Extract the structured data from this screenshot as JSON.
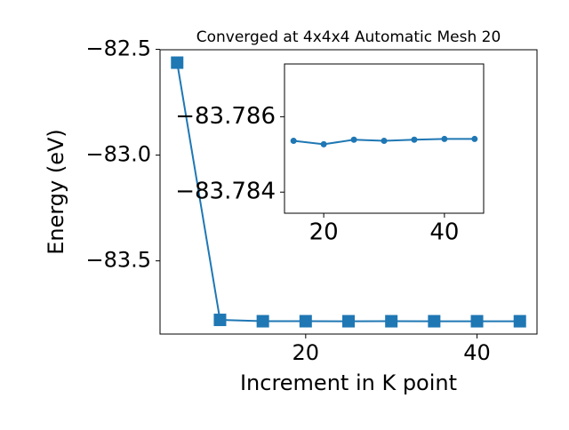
{
  "chart_data": [
    {
      "type": "line",
      "title": "Converged at 4x4x4 Automatic Mesh 20",
      "x_label": "Increment in K point",
      "y_label": "Energy (eV)",
      "x": [
        5,
        10,
        15,
        20,
        25,
        30,
        35,
        40,
        45
      ],
      "series": [
        {
          "color": "#1f77b4",
          "marker": "square",
          "values": [
            -82.563,
            -83.779,
            -83.78536,
            -83.78527,
            -83.78539,
            -83.78536,
            -83.78539,
            -83.78541,
            -83.78541
          ]
        }
      ],
      "xlim": [
        3,
        47
      ],
      "xticks": [
        20,
        40
      ],
      "ylim": [
        -83.846,
        -82.502
      ],
      "yticks": [
        {
          "value": -82.5,
          "label": "−82.5"
        },
        {
          "value": -83.0,
          "label": "−83.0"
        },
        {
          "value": -83.5,
          "label": "−83.5"
        }
      ]
    },
    {
      "type": "line",
      "x": [
        15,
        20,
        25,
        30,
        35,
        40,
        45
      ],
      "series": [
        {
          "color": "#1f77b4",
          "marker": "circle",
          "values": [
            -83.78536,
            -83.78527,
            -83.78539,
            -83.78536,
            -83.78539,
            -83.78541,
            -83.78541
          ]
        }
      ],
      "xlim": [
        13.5,
        46.5
      ],
      "xticks": [
        20,
        40
      ],
      "ylim": [
        -83.78344,
        -83.7874
      ],
      "yticks": [
        {
          "value": -83.786,
          "label": "−83.786"
        },
        {
          "value": -83.784,
          "label": "−83.784"
        }
      ]
    }
  ]
}
